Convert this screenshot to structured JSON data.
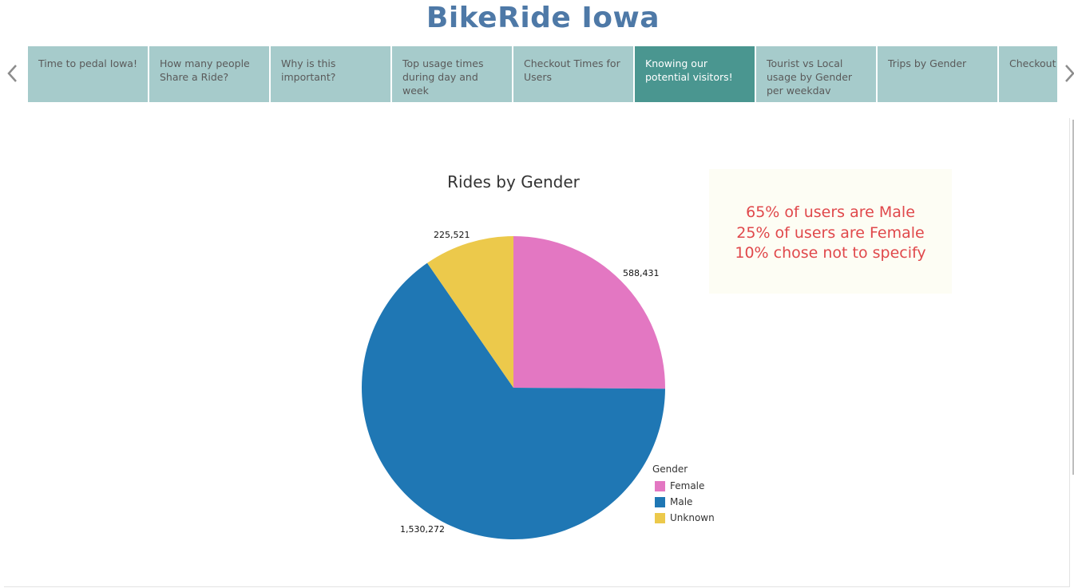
{
  "header": {
    "title": "BikeRide Iowa"
  },
  "nav": {
    "prev_icon": "chevron-left-icon",
    "next_icon": "chevron-right-icon"
  },
  "tabs": [
    {
      "label": "Time to pedal Iowa!",
      "active": false
    },
    {
      "label": "How many people Share a Ride?",
      "active": false
    },
    {
      "label": "Why is this important?",
      "active": false
    },
    {
      "label": "Top usage times during day and week",
      "active": false
    },
    {
      "label": "Checkout Times for Users",
      "active": false
    },
    {
      "label": "Knowing our potential visitors!",
      "active": true
    },
    {
      "label": "Tourist vs Local usage by Gender per weekdav",
      "active": false
    },
    {
      "label": "Trips by Gender",
      "active": false
    },
    {
      "label": "Checkout t gender",
      "active": false
    }
  ],
  "colors": {
    "title": "#4e79a7",
    "tab_bg": "#a6cbcb",
    "tab_active_bg": "#4a9690",
    "note_text": "#e0484b",
    "note_bg": "#fdfdf4"
  },
  "note": {
    "lines": [
      "65% of users are Male",
      "25% of users are Female",
      "10% chose not to specify"
    ]
  },
  "chart_data": {
    "type": "pie",
    "title": "Rides by Gender",
    "legend_title": "Gender",
    "legend_position": "bottom-right",
    "slices": [
      {
        "label": "Female",
        "value": 588431,
        "display": "588,431",
        "color": "#e377c2"
      },
      {
        "label": "Male",
        "value": 1530272,
        "display": "1,530,272",
        "color": "#1f77b4"
      },
      {
        "label": "Unknown",
        "value": 225521,
        "display": "225,521",
        "color": "#ecc94b"
      }
    ]
  }
}
